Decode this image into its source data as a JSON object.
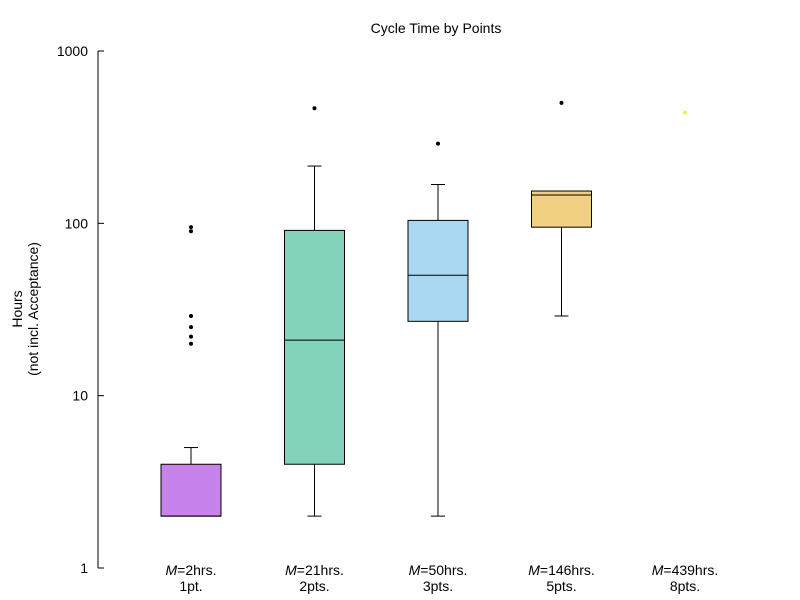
{
  "chart_data": {
    "type": "boxplot",
    "title": "Cycle Time by Points",
    "ylabel": "Hours",
    "ylabel2": "(not incl. Acceptance)",
    "yscale": "log",
    "ylim": [
      1,
      1000
    ],
    "yticks": [
      "1",
      "10",
      "100",
      "1000"
    ],
    "grid": false,
    "median_prefix": "M",
    "categories": [
      {
        "median_label": "=2hrs.",
        "label": "1pt.",
        "color": "#c882ec",
        "whisker_low": 2,
        "q1": 2,
        "median": 2,
        "q3": 4,
        "whisker_high": 5,
        "outliers": [
          20,
          22,
          25,
          29,
          90,
          95
        ]
      },
      {
        "median_label": "=21hrs.",
        "label": "2pts.",
        "color": "#82d2bc",
        "whisker_low": 2,
        "q1": 4,
        "median": 21,
        "q3": 91,
        "whisker_high": 215,
        "outliers": [
          465
        ]
      },
      {
        "median_label": "=50hrs.",
        "label": "3pts.",
        "color": "#aad8f2",
        "whisker_low": 2,
        "q1": 27,
        "median": 50,
        "q3": 104,
        "whisker_high": 168,
        "outliers": [
          290
        ]
      },
      {
        "median_label": "=146hrs.",
        "label": "5pts.",
        "color": "#f2d082",
        "whisker_low": 29,
        "q1": 95,
        "median": 146,
        "q3": 154,
        "whisker_high": 154,
        "outliers": [
          500
        ]
      },
      {
        "median_label": "=439hrs.",
        "label": "8pts.",
        "color": "#f2ec5a",
        "whisker_low": null,
        "q1": null,
        "median": 439,
        "q3": null,
        "whisker_high": null,
        "outliers": []
      }
    ]
  }
}
